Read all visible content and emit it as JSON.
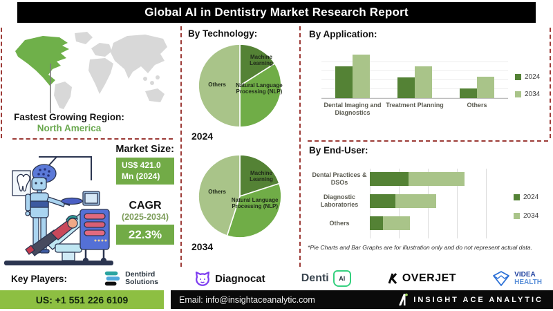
{
  "title": "Global AI in Dentistry Market Research Report",
  "region": {
    "heading": "Fastest Growing Region:",
    "value": "North America",
    "highlight_color": "#6fb04a",
    "map_color": "#d8d8d8"
  },
  "market_size": {
    "heading": "Market Size:",
    "value": "US$ 421.0 Mn (2024)",
    "cagr_label": "CAGR",
    "cagr_period": "(2025-2034)",
    "cagr_value": "22.3%"
  },
  "sections": {
    "technology": "By Technology:",
    "application": "By Application:",
    "end_user": "By End-User:"
  },
  "colors": {
    "series_2024": "#548235",
    "series_2034": "#a9c489",
    "pie_mid": "#70ad47",
    "divider_red": "#9c3a36",
    "footer_green": "#8dbf42",
    "box_green": "#72ab47"
  },
  "chart_data": [
    {
      "name": "technology_2024",
      "type": "pie",
      "year_label": "2024",
      "labels": [
        "Machine Learning",
        "Natural Language Processing (NLP)",
        "Others"
      ],
      "values": [
        16,
        34,
        50
      ],
      "colors": [
        "#548235",
        "#70ad47",
        "#a9c489"
      ]
    },
    {
      "name": "technology_2034",
      "type": "pie",
      "year_label": "2034",
      "labels": [
        "Machine Learning",
        "Natural Language Processing (NLP)",
        "Others"
      ],
      "values": [
        20,
        35,
        45
      ],
      "colors": [
        "#548235",
        "#70ad47",
        "#a9c489"
      ]
    },
    {
      "name": "application",
      "type": "bar",
      "categories": [
        "Dental Imaging and Diagnostics",
        "Treatment Planning",
        "Others"
      ],
      "series": [
        {
          "name": "2024",
          "values": [
            71,
            46,
            22
          ],
          "color": "#548235"
        },
        {
          "name": "2034",
          "values": [
            97,
            71,
            48
          ],
          "color": "#a9c489"
        }
      ],
      "ylim": [
        0,
        100
      ],
      "grid": true,
      "legend_position": "right"
    },
    {
      "name": "end_user",
      "type": "stacked-bar-horizontal",
      "categories": [
        "Dental Practices & DSOs",
        "Diagnostic Laboratories",
        "Others"
      ],
      "series": [
        {
          "name": "2024",
          "values": [
            27,
            18,
            9
          ],
          "color": "#548235"
        },
        {
          "name": "2034",
          "values": [
            39,
            28,
            19
          ],
          "color": "#a9c489"
        }
      ],
      "xlim": [
        0,
        100
      ],
      "grid": true,
      "legend_position": "right",
      "note": "*Pie Charts and Bar Graphs are for illustration only and do not represent actual data."
    }
  ],
  "key_players": {
    "heading": "Key Players:",
    "dentbird": {
      "line1": "Dentbird",
      "line2": "Solutions"
    },
    "diagnocat": {
      "label": "Diagnocat"
    },
    "dentiai": {
      "label": "Denti",
      "badge": "AI"
    },
    "overjet": {
      "label": "OVERJET"
    },
    "videa": {
      "line1": "VIDEA",
      "line2": "HEALTH"
    }
  },
  "footer": {
    "phone": "US: +1 551 226 6109",
    "email": "Email: info@insightaceanalytic.com",
    "brand": "INSIGHT ACE ANALYTIC"
  }
}
